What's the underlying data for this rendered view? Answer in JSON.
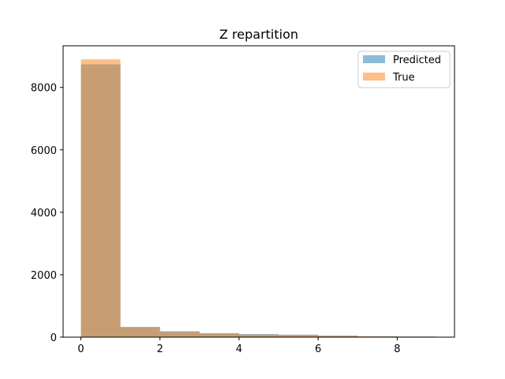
{
  "chart_data": {
    "type": "bar",
    "title": "Z repartition",
    "xlabel": "",
    "ylabel": "",
    "xlim": [
      -0.45,
      9.45
    ],
    "ylim": [
      0,
      9334
    ],
    "x_ticks": [
      "0",
      "2",
      "4",
      "6",
      "8"
    ],
    "y_ticks": [
      "0",
      "2000",
      "4000",
      "6000",
      "8000"
    ],
    "bin_edges": [
      0,
      1,
      2,
      3,
      4,
      5,
      6,
      7,
      8,
      9
    ],
    "series": [
      {
        "name": "Predicted",
        "color": "#1f77b4",
        "opacity": 0.5,
        "values": [
          8740,
          330,
          190,
          130,
          100,
          80,
          50,
          30,
          20
        ]
      },
      {
        "name": "True",
        "color": "#ff7f0e",
        "opacity": 0.5,
        "values": [
          8900,
          310,
          170,
          110,
          85,
          65,
          45,
          25,
          15
        ]
      }
    ],
    "legend_position": "top-right",
    "grid": false
  }
}
